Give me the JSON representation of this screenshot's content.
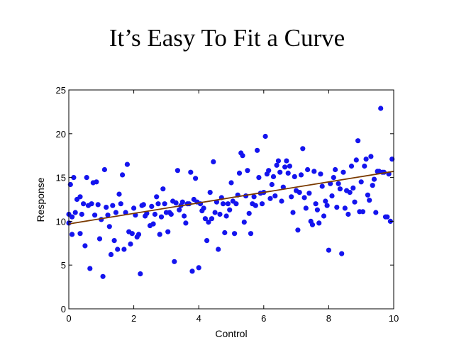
{
  "slide": {
    "title": "It’s Easy To Fit a Curve"
  },
  "colors": {
    "points": "#1414ee",
    "fit_line": "#7a3a00",
    "axes": "#000000",
    "background": "#ffffff"
  },
  "chart_data": {
    "type": "scatter",
    "title": "",
    "xlabel": "Control",
    "ylabel": "Response",
    "xlim": [
      0,
      10
    ],
    "ylim": [
      0,
      25
    ],
    "xticks": [
      0,
      2,
      4,
      6,
      8,
      10
    ],
    "yticks": [
      0,
      5,
      10,
      15,
      20,
      25
    ],
    "grid": false,
    "legend": "none",
    "fit_line": {
      "x": [
        0,
        10
      ],
      "y": [
        9.7,
        15.7
      ]
    },
    "series": [
      {
        "points": [
          [
            0.0,
            10.8
          ],
          [
            0.0,
            9.8
          ],
          [
            0.05,
            14.2
          ],
          [
            0.1,
            10.5
          ],
          [
            0.1,
            8.5
          ],
          [
            0.15,
            15.0
          ],
          [
            0.2,
            11.0
          ],
          [
            0.25,
            12.5
          ],
          [
            0.35,
            8.6
          ],
          [
            0.35,
            12.8
          ],
          [
            0.4,
            10.8
          ],
          [
            0.45,
            12.0
          ],
          [
            0.5,
            7.2
          ],
          [
            0.55,
            15.0
          ],
          [
            0.6,
            11.8
          ],
          [
            0.65,
            4.6
          ],
          [
            0.7,
            12.0
          ],
          [
            0.75,
            14.4
          ],
          [
            0.8,
            10.7
          ],
          [
            0.85,
            14.5
          ],
          [
            0.9,
            11.9
          ],
          [
            0.95,
            8.0
          ],
          [
            1.0,
            10.2
          ],
          [
            1.05,
            3.7
          ],
          [
            1.1,
            15.9
          ],
          [
            1.15,
            11.6
          ],
          [
            1.2,
            10.7
          ],
          [
            1.25,
            9.4
          ],
          [
            1.3,
            6.2
          ],
          [
            1.35,
            11.8
          ],
          [
            1.4,
            7.8
          ],
          [
            1.45,
            11.0
          ],
          [
            1.5,
            6.8
          ],
          [
            1.55,
            13.1
          ],
          [
            1.6,
            12.0
          ],
          [
            1.65,
            15.3
          ],
          [
            1.7,
            6.8
          ],
          [
            1.75,
            11.0
          ],
          [
            1.8,
            16.5
          ],
          [
            1.85,
            8.8
          ],
          [
            1.9,
            7.4
          ],
          [
            1.95,
            8.6
          ],
          [
            2.0,
            11.5
          ],
          [
            2.05,
            10.7
          ],
          [
            2.1,
            8.2
          ],
          [
            2.15,
            8.5
          ],
          [
            2.2,
            4.0
          ],
          [
            2.25,
            11.8
          ],
          [
            2.3,
            11.9
          ],
          [
            2.35,
            10.6
          ],
          [
            2.4,
            10.9
          ],
          [
            2.5,
            9.5
          ],
          [
            2.55,
            11.7
          ],
          [
            2.6,
            9.7
          ],
          [
            2.65,
            10.8
          ],
          [
            2.7,
            12.8
          ],
          [
            2.75,
            12.0
          ],
          [
            2.8,
            8.5
          ],
          [
            2.85,
            10.5
          ],
          [
            2.9,
            13.7
          ],
          [
            2.95,
            12.0
          ],
          [
            3.0,
            11.0
          ],
          [
            3.05,
            8.8
          ],
          [
            3.1,
            11.0
          ],
          [
            3.15,
            10.8
          ],
          [
            3.2,
            12.3
          ],
          [
            3.25,
            5.4
          ],
          [
            3.3,
            12.1
          ],
          [
            3.35,
            15.8
          ],
          [
            3.4,
            11.3
          ],
          [
            3.45,
            11.8
          ],
          [
            3.5,
            12.2
          ],
          [
            3.55,
            10.6
          ],
          [
            3.6,
            9.8
          ],
          [
            3.65,
            12.0
          ],
          [
            3.7,
            12.0
          ],
          [
            3.75,
            15.6
          ],
          [
            3.8,
            4.3
          ],
          [
            3.85,
            12.5
          ],
          [
            3.9,
            14.9
          ],
          [
            3.95,
            12.2
          ],
          [
            4.0,
            4.7
          ],
          [
            4.05,
            12.0
          ],
          [
            4.1,
            11.2
          ],
          [
            4.15,
            11.5
          ],
          [
            4.2,
            10.3
          ],
          [
            4.25,
            7.8
          ],
          [
            4.3,
            9.9
          ],
          [
            4.35,
            13.3
          ],
          [
            4.4,
            10.3
          ],
          [
            4.45,
            16.8
          ],
          [
            4.5,
            11.0
          ],
          [
            4.55,
            12.2
          ],
          [
            4.6,
            6.8
          ],
          [
            4.65,
            10.8
          ],
          [
            4.7,
            12.7
          ],
          [
            4.75,
            12.0
          ],
          [
            4.8,
            8.7
          ],
          [
            4.85,
            10.6
          ],
          [
            4.9,
            12.0
          ],
          [
            4.95,
            11.3
          ],
          [
            5.0,
            14.4
          ],
          [
            5.05,
            12.3
          ],
          [
            5.1,
            8.6
          ],
          [
            5.15,
            12.0
          ],
          [
            5.2,
            13.0
          ],
          [
            5.25,
            15.5
          ],
          [
            5.3,
            17.8
          ],
          [
            5.35,
            17.5
          ],
          [
            5.4,
            9.9
          ],
          [
            5.45,
            12.9
          ],
          [
            5.5,
            15.8
          ],
          [
            5.55,
            10.9
          ],
          [
            5.6,
            8.6
          ],
          [
            5.65,
            12.0
          ],
          [
            5.7,
            12.8
          ],
          [
            5.75,
            11.8
          ],
          [
            5.8,
            18.1
          ],
          [
            5.85,
            15.0
          ],
          [
            5.9,
            13.2
          ],
          [
            5.95,
            12.0
          ],
          [
            6.0,
            13.3
          ],
          [
            6.05,
            19.7
          ],
          [
            6.1,
            15.4
          ],
          [
            6.15,
            15.8
          ],
          [
            6.2,
            12.6
          ],
          [
            6.25,
            14.2
          ],
          [
            6.3,
            15.1
          ],
          [
            6.35,
            12.9
          ],
          [
            6.4,
            16.4
          ],
          [
            6.45,
            16.9
          ],
          [
            6.5,
            15.6
          ],
          [
            6.55,
            12.3
          ],
          [
            6.6,
            13.9
          ],
          [
            6.65,
            16.2
          ],
          [
            6.7,
            16.9
          ],
          [
            6.75,
            15.5
          ],
          [
            6.8,
            16.3
          ],
          [
            6.85,
            12.8
          ],
          [
            6.9,
            11.0
          ],
          [
            6.95,
            15.1
          ],
          [
            7.0,
            13.5
          ],
          [
            7.05,
            9.0
          ],
          [
            7.1,
            13.3
          ],
          [
            7.15,
            15.3
          ],
          [
            7.2,
            18.3
          ],
          [
            7.25,
            12.7
          ],
          [
            7.3,
            11.5
          ],
          [
            7.35,
            15.9
          ],
          [
            7.4,
            13.2
          ],
          [
            7.45,
            10.0
          ],
          [
            7.5,
            9.6
          ],
          [
            7.55,
            15.7
          ],
          [
            7.6,
            12.0
          ],
          [
            7.65,
            11.3
          ],
          [
            7.7,
            9.8
          ],
          [
            7.75,
            15.4
          ],
          [
            7.8,
            14.0
          ],
          [
            7.85,
            10.6
          ],
          [
            7.9,
            12.3
          ],
          [
            7.95,
            11.8
          ],
          [
            8.0,
            6.7
          ],
          [
            8.05,
            14.3
          ],
          [
            8.1,
            12.9
          ],
          [
            8.15,
            15.0
          ],
          [
            8.2,
            15.9
          ],
          [
            8.25,
            11.6
          ],
          [
            8.3,
            14.3
          ],
          [
            8.35,
            13.7
          ],
          [
            8.4,
            6.3
          ],
          [
            8.45,
            15.6
          ],
          [
            8.5,
            11.5
          ],
          [
            8.55,
            13.5
          ],
          [
            8.6,
            10.8
          ],
          [
            8.65,
            13.3
          ],
          [
            8.7,
            16.3
          ],
          [
            8.75,
            13.8
          ],
          [
            8.8,
            12.2
          ],
          [
            8.85,
            17.0
          ],
          [
            8.9,
            19.2
          ],
          [
            8.95,
            11.1
          ],
          [
            9.0,
            14.5
          ],
          [
            9.05,
            11.1
          ],
          [
            9.1,
            16.3
          ],
          [
            9.15,
            17.1
          ],
          [
            9.2,
            13.0
          ],
          [
            9.25,
            12.4
          ],
          [
            9.3,
            17.4
          ],
          [
            9.35,
            14.1
          ],
          [
            9.4,
            14.8
          ],
          [
            9.45,
            11.0
          ],
          [
            9.5,
            15.7
          ],
          [
            9.55,
            15.7
          ],
          [
            9.6,
            22.9
          ],
          [
            9.65,
            15.6
          ],
          [
            9.7,
            15.6
          ],
          [
            9.75,
            10.5
          ],
          [
            9.8,
            10.5
          ],
          [
            9.85,
            15.4
          ],
          [
            9.9,
            10.0
          ],
          [
            9.95,
            17.1
          ]
        ]
      }
    ]
  }
}
